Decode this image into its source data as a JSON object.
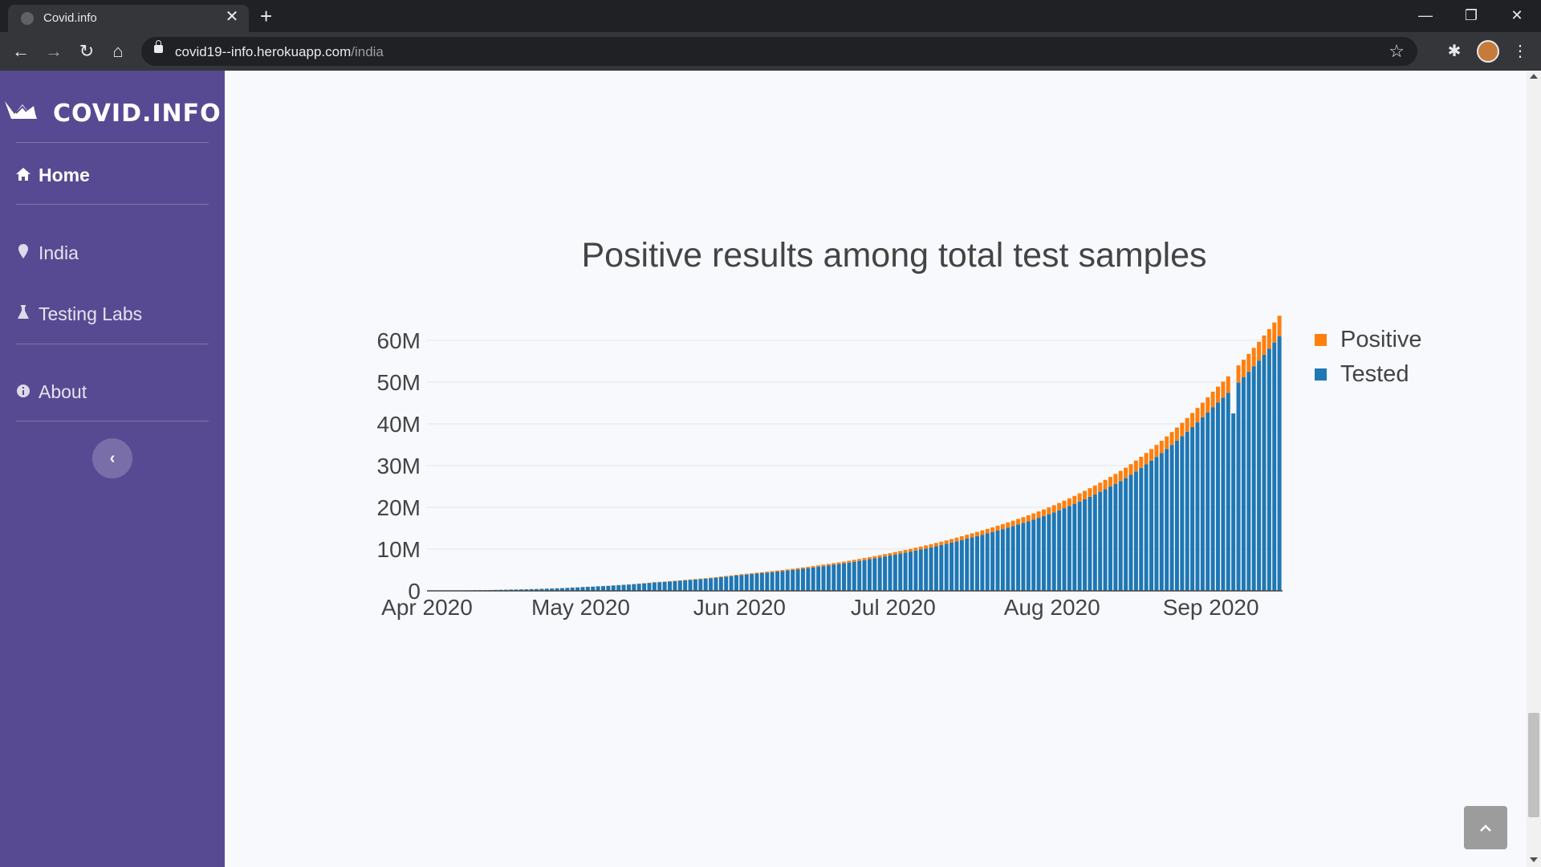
{
  "browser": {
    "tab_title": "Covid.info",
    "tab_close": "✕",
    "new_tab": "+",
    "url_host": "covid19--info.herokuapp.com",
    "url_path": "/india",
    "icons": [
      "back-icon",
      "forward-icon",
      "reload-icon",
      "home-icon",
      "lock-icon",
      "star-icon",
      "extensions-icon",
      "profile-avatar",
      "menu-icon"
    ]
  },
  "sidebar": {
    "brand": "COVID.INFO",
    "items": [
      {
        "label": "Home",
        "icon": "home-icon",
        "active": true
      },
      {
        "label": "India",
        "icon": "map-marker-icon",
        "active": false
      },
      {
        "label": "Testing Labs",
        "icon": "flask-icon",
        "active": false
      },
      {
        "label": "About",
        "icon": "info-icon",
        "active": false
      }
    ],
    "collapse_glyph": "‹"
  },
  "colors": {
    "sidebar_bg": "#584a92",
    "positive": "#ff7f0e",
    "tested": "#1f77b4"
  },
  "chart_data": {
    "type": "bar",
    "stacked": true,
    "title": "Positive results among total test samples",
    "xlabel": "",
    "ylabel": "",
    "x_range": [
      "2020-04-01",
      "2020-09-14"
    ],
    "x_ticks": [
      "Apr 2020",
      "May 2020",
      "Jun 2020",
      "Jul 2020",
      "Aug 2020",
      "Sep 2020"
    ],
    "y_ticks": [
      "0",
      "10M",
      "20M",
      "30M",
      "40M",
      "50M",
      "60M"
    ],
    "ylim": [
      0,
      65000000
    ],
    "legend_position": "top-right",
    "series": [
      {
        "name": "Positive",
        "color": "#ff7f0e"
      },
      {
        "name": "Tested",
        "color": "#1f77b4"
      }
    ],
    "keyframes": [
      {
        "date": "2020-04-01",
        "tested": 40000,
        "positive": 1600
      },
      {
        "date": "2020-04-15",
        "tested": 250000,
        "positive": 11000
      },
      {
        "date": "2020-05-01",
        "tested": 900000,
        "positive": 35000
      },
      {
        "date": "2020-05-15",
        "tested": 2000000,
        "positive": 82000
      },
      {
        "date": "2020-06-01",
        "tested": 3800000,
        "positive": 190000
      },
      {
        "date": "2020-06-15",
        "tested": 5600000,
        "positive": 330000
      },
      {
        "date": "2020-07-01",
        "tested": 8700000,
        "positive": 600000
      },
      {
        "date": "2020-07-15",
        "tested": 12500000,
        "positive": 940000
      },
      {
        "date": "2020-08-01",
        "tested": 18800000,
        "positive": 1700000
      },
      {
        "date": "2020-08-15",
        "tested": 27000000,
        "positive": 2500000
      },
      {
        "date": "2020-09-01",
        "tested": 44000000,
        "positive": 3700000
      },
      {
        "date": "2020-09-14",
        "tested": 61000000,
        "positive": 4900000
      }
    ],
    "dip": {
      "date": "2020-09-05",
      "tested": 42500000,
      "positive": 0
    }
  }
}
